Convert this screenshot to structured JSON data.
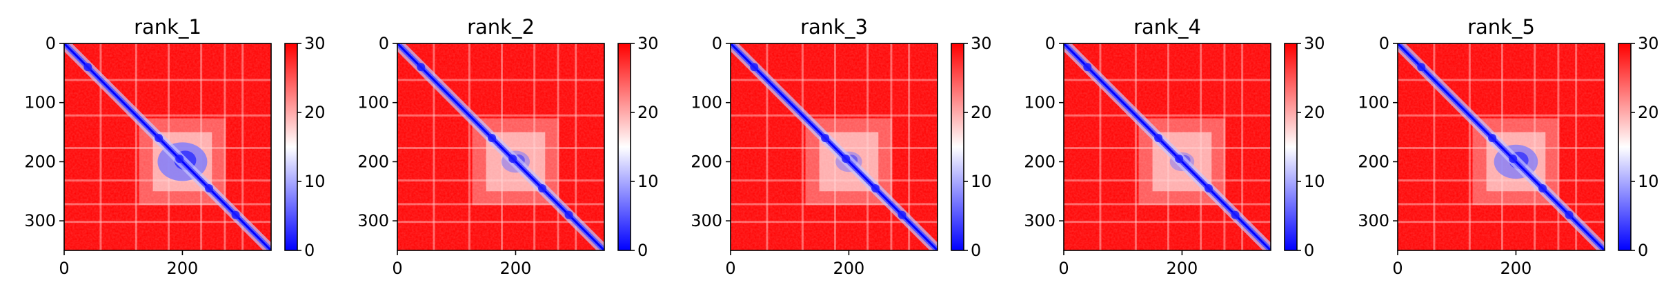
{
  "chart_data": [
    {
      "type": "heatmap",
      "title": "rank_1",
      "matrix_size": 350,
      "colormap": {
        "low": "#0000ff",
        "mid": "#ffffff",
        "high": "#ff0000"
      },
      "clim": [
        0,
        30
      ],
      "x_ticks": [
        0,
        200
      ],
      "y_ticks": [
        0,
        100,
        200,
        300
      ],
      "colorbar_ticks": [
        0,
        10,
        20,
        30
      ],
      "diagonal_band": true,
      "central_low_block": [
        150,
        250
      ],
      "blob_strength": 1.0
    },
    {
      "type": "heatmap",
      "title": "rank_2",
      "matrix_size": 350,
      "colormap": {
        "low": "#0000ff",
        "mid": "#ffffff",
        "high": "#ff0000"
      },
      "clim": [
        0,
        30
      ],
      "x_ticks": [
        0,
        200
      ],
      "y_ticks": [
        0,
        100,
        200,
        300
      ],
      "colorbar_ticks": [
        0,
        10,
        20,
        30
      ],
      "diagonal_band": true,
      "central_low_block": [
        150,
        250
      ],
      "blob_strength": 0.45
    },
    {
      "type": "heatmap",
      "title": "rank_3",
      "matrix_size": 350,
      "colormap": {
        "low": "#0000ff",
        "mid": "#ffffff",
        "high": "#ff0000"
      },
      "clim": [
        0,
        30
      ],
      "x_ticks": [
        0,
        200
      ],
      "y_ticks": [
        0,
        100,
        200,
        300
      ],
      "colorbar_ticks": [
        0,
        10,
        20,
        30
      ],
      "diagonal_band": true,
      "central_low_block": [
        150,
        250
      ],
      "blob_strength": 0.4
    },
    {
      "type": "heatmap",
      "title": "rank_4",
      "matrix_size": 350,
      "colormap": {
        "low": "#0000ff",
        "mid": "#ffffff",
        "high": "#ff0000"
      },
      "clim": [
        0,
        30
      ],
      "x_ticks": [
        0,
        200
      ],
      "y_ticks": [
        0,
        100,
        200,
        300
      ],
      "colorbar_ticks": [
        0,
        10,
        20,
        30
      ],
      "diagonal_band": true,
      "central_low_block": [
        150,
        250
      ],
      "blob_strength": 0.35
    },
    {
      "type": "heatmap",
      "title": "rank_5",
      "matrix_size": 350,
      "colormap": {
        "low": "#0000ff",
        "mid": "#ffffff",
        "high": "#ff0000"
      },
      "clim": [
        0,
        30
      ],
      "x_ticks": [
        0,
        200
      ],
      "y_ticks": [
        0,
        100,
        200,
        300
      ],
      "colorbar_ticks": [
        0,
        10,
        20,
        30
      ],
      "diagonal_band": true,
      "central_low_block": [
        150,
        250
      ],
      "blob_strength": 0.85
    }
  ]
}
